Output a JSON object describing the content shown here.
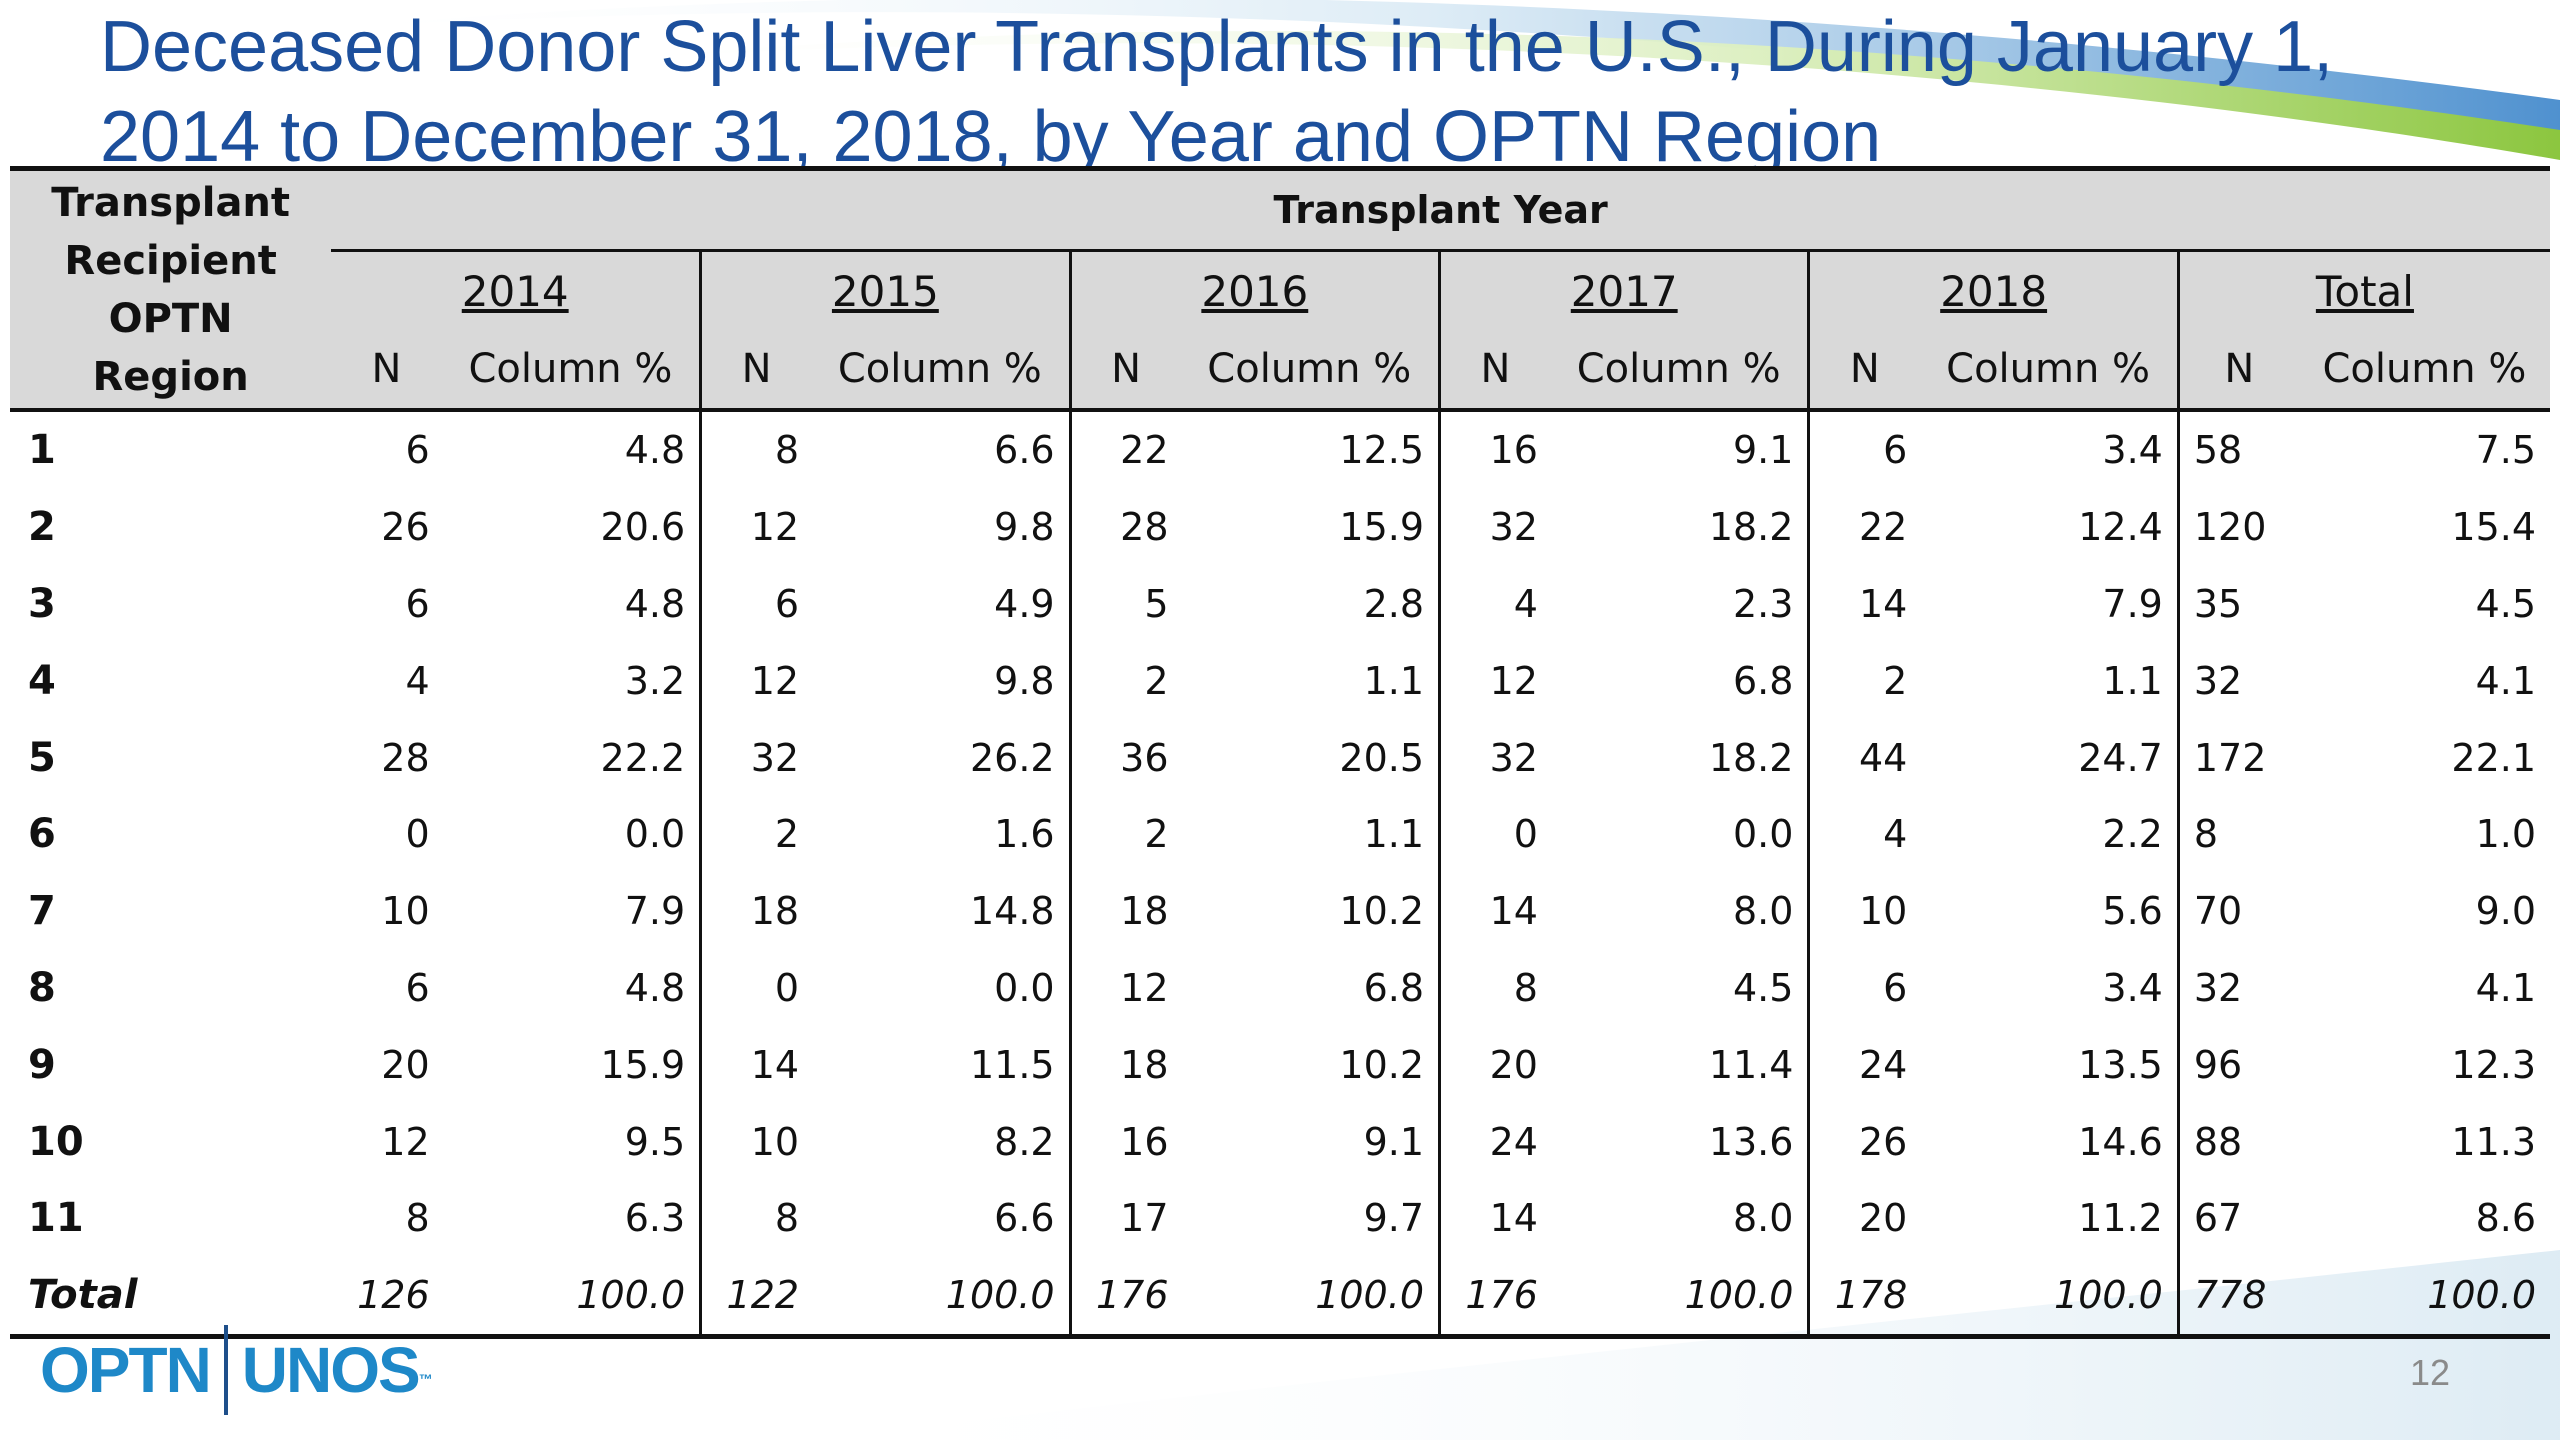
{
  "title": "Deceased Donor Split Liver Transplants in the U.S., During January 1, 2014 to December 31, 2018, by Year and OPTN Region",
  "table": {
    "region_header": "Transplant Recipient OPTN Region",
    "year_header": "Transplant Year",
    "groups": [
      "2014",
      "2015",
      "2016",
      "2017",
      "2018",
      "Total"
    ],
    "sub_n": "N",
    "sub_pct": "Column %",
    "rows": [
      {
        "region": "1",
        "cells": [
          "6",
          "4.8",
          "8",
          "6.6",
          "22",
          "12.5",
          "16",
          "9.1",
          "6",
          "3.4",
          "58",
          "7.5"
        ]
      },
      {
        "region": "2",
        "cells": [
          "26",
          "20.6",
          "12",
          "9.8",
          "28",
          "15.9",
          "32",
          "18.2",
          "22",
          "12.4",
          "120",
          "15.4"
        ]
      },
      {
        "region": "3",
        "cells": [
          "6",
          "4.8",
          "6",
          "4.9",
          "5",
          "2.8",
          "4",
          "2.3",
          "14",
          "7.9",
          "35",
          "4.5"
        ]
      },
      {
        "region": "4",
        "cells": [
          "4",
          "3.2",
          "12",
          "9.8",
          "2",
          "1.1",
          "12",
          "6.8",
          "2",
          "1.1",
          "32",
          "4.1"
        ]
      },
      {
        "region": "5",
        "cells": [
          "28",
          "22.2",
          "32",
          "26.2",
          "36",
          "20.5",
          "32",
          "18.2",
          "44",
          "24.7",
          "172",
          "22.1"
        ]
      },
      {
        "region": "6",
        "cells": [
          "0",
          "0.0",
          "2",
          "1.6",
          "2",
          "1.1",
          "0",
          "0.0",
          "4",
          "2.2",
          "8",
          "1.0"
        ]
      },
      {
        "region": "7",
        "cells": [
          "10",
          "7.9",
          "18",
          "14.8",
          "18",
          "10.2",
          "14",
          "8.0",
          "10",
          "5.6",
          "70",
          "9.0"
        ]
      },
      {
        "region": "8",
        "cells": [
          "6",
          "4.8",
          "0",
          "0.0",
          "12",
          "6.8",
          "8",
          "4.5",
          "6",
          "3.4",
          "32",
          "4.1"
        ]
      },
      {
        "region": "9",
        "cells": [
          "20",
          "15.9",
          "14",
          "11.5",
          "18",
          "10.2",
          "20",
          "11.4",
          "24",
          "13.5",
          "96",
          "12.3"
        ]
      },
      {
        "region": "10",
        "cells": [
          "12",
          "9.5",
          "10",
          "8.2",
          "16",
          "9.1",
          "24",
          "13.6",
          "26",
          "14.6",
          "88",
          "11.3"
        ]
      },
      {
        "region": "11",
        "cells": [
          "8",
          "6.3",
          "8",
          "6.6",
          "17",
          "9.7",
          "14",
          "8.0",
          "20",
          "11.2",
          "67",
          "8.6"
        ]
      }
    ],
    "total": {
      "region": "Total",
      "cells": [
        "126",
        "100.0",
        "122",
        "100.0",
        "176",
        "100.0",
        "176",
        "100.0",
        "178",
        "100.0",
        "778",
        "100.0"
      ]
    }
  },
  "footer": {
    "logo_left": "OPTN",
    "logo_right": "UNOS",
    "logo_mark": "™",
    "page_number": "12"
  },
  "colors": {
    "title": "#1c4f9c",
    "header_bg": "#d9d9d9",
    "logo": "#1e88c8"
  }
}
